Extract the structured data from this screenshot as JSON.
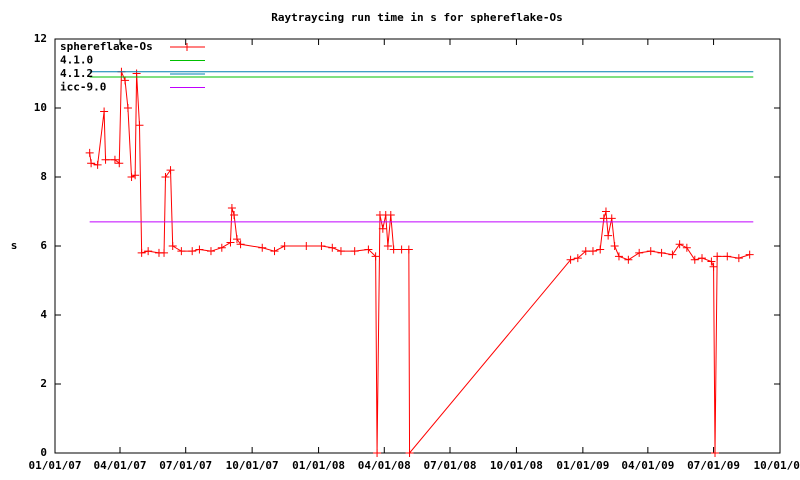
{
  "chart_data": {
    "type": "line",
    "title": "Raytraycing run time in s for sphereflake-Os",
    "y_label": "s",
    "xlim": [
      "2007-01-01",
      "2009-10-01"
    ],
    "ylim": [
      0,
      12
    ],
    "yticks": [
      0,
      2,
      4,
      6,
      8,
      10,
      12
    ],
    "xticks": [
      {
        "value": "2007-01-01",
        "label": "01/01/07"
      },
      {
        "value": "2007-04-01",
        "label": "04/01/07"
      },
      {
        "value": "2007-07-01",
        "label": "07/01/07"
      },
      {
        "value": "2007-10-01",
        "label": "10/01/07"
      },
      {
        "value": "2008-01-01",
        "label": "01/01/08"
      },
      {
        "value": "2008-04-01",
        "label": "04/01/08"
      },
      {
        "value": "2008-07-01",
        "label": "07/01/08"
      },
      {
        "value": "2008-10-01",
        "label": "10/01/08"
      },
      {
        "value": "2009-01-01",
        "label": "01/01/09"
      },
      {
        "value": "2009-04-01",
        "label": "04/01/09"
      },
      {
        "value": "2009-07-01",
        "label": "07/01/09"
      },
      {
        "value": "2009-10-01",
        "label": "10/01/09"
      }
    ],
    "legend": "top left",
    "grid": false,
    "series": [
      {
        "name": "sphereflake-Os",
        "color": "#ff0000",
        "style": "linespoints",
        "x": [
          "2007-02-18",
          "2007-02-20",
          "2007-03-01",
          "2007-03-10",
          "2007-03-12",
          "2007-03-25",
          "2007-03-31",
          "2007-04-03",
          "2007-04-08",
          "2007-04-12",
          "2007-04-17",
          "2007-04-22",
          "2007-04-24",
          "2007-04-28",
          "2007-05-01",
          "2007-05-10",
          "2007-05-25",
          "2007-06-01",
          "2007-06-03",
          "2007-06-10",
          "2007-06-13",
          "2007-06-25",
          "2007-07-10",
          "2007-07-20",
          "2007-08-05",
          "2007-08-20",
          "2007-09-01",
          "2007-09-03",
          "2007-09-06",
          "2007-09-10",
          "2007-09-15",
          "2007-10-15",
          "2007-11-01",
          "2007-11-15",
          "2007-12-15",
          "2008-01-05",
          "2008-01-20",
          "2008-02-01",
          "2008-02-20",
          "2008-03-10",
          "2008-03-20",
          "2008-03-22",
          "2008-03-26",
          "2008-03-30",
          "2008-04-03",
          "2008-04-06",
          "2008-04-10",
          "2008-04-14",
          "2008-04-25",
          "2008-05-05",
          "2008-05-06",
          "2008-12-15",
          "2008-12-25",
          "2009-01-05",
          "2009-01-15",
          "2009-01-25",
          "2009-01-30",
          "2009-02-02",
          "2009-02-05",
          "2009-02-10",
          "2009-02-14",
          "2009-02-20",
          "2009-03-05",
          "2009-03-20",
          "2009-04-05",
          "2009-04-20",
          "2009-05-05",
          "2009-05-15",
          "2009-05-25",
          "2009-06-05",
          "2009-06-15",
          "2009-06-28",
          "2009-07-01",
          "2009-07-03",
          "2009-07-06",
          "2009-07-20",
          "2009-08-05",
          "2009-08-20"
        ],
        "values": [
          8.7,
          8.4,
          8.35,
          9.9,
          8.5,
          8.5,
          8.4,
          11.05,
          10.8,
          10.0,
          8.0,
          8.05,
          11.0,
          9.5,
          5.8,
          5.85,
          5.8,
          5.8,
          8.0,
          8.2,
          6.0,
          5.85,
          5.85,
          5.9,
          5.85,
          5.95,
          6.1,
          7.1,
          6.9,
          6.2,
          6.05,
          5.95,
          5.85,
          6.0,
          6.0,
          6.0,
          5.95,
          5.85,
          5.85,
          5.9,
          5.7,
          0,
          6.9,
          6.5,
          6.9,
          6.0,
          6.9,
          5.9,
          5.9,
          5.9,
          0,
          5.6,
          5.65,
          5.85,
          5.85,
          5.9,
          6.8,
          7.0,
          6.3,
          6.8,
          6.0,
          5.7,
          5.6,
          5.8,
          5.85,
          5.8,
          5.75,
          6.05,
          5.95,
          5.6,
          5.65,
          5.55,
          5.4,
          0,
          5.7,
          5.7,
          5.65,
          5.75
        ]
      },
      {
        "name": "4.1.0",
        "color": "#00c000",
        "style": "lines",
        "x": [
          "2007-02-18",
          "2009-08-25"
        ],
        "values": [
          10.9,
          10.9
        ]
      },
      {
        "name": "4.1.2",
        "color": "#0080b0",
        "style": "lines",
        "x": [
          "2007-02-18",
          "2009-08-25"
        ],
        "values": [
          11.05,
          11.05
        ]
      },
      {
        "name": "icc-9.0",
        "color": "#c000ff",
        "style": "lines",
        "x": [
          "2007-02-18",
          "2009-08-25"
        ],
        "values": [
          6.7,
          6.7
        ]
      }
    ]
  }
}
